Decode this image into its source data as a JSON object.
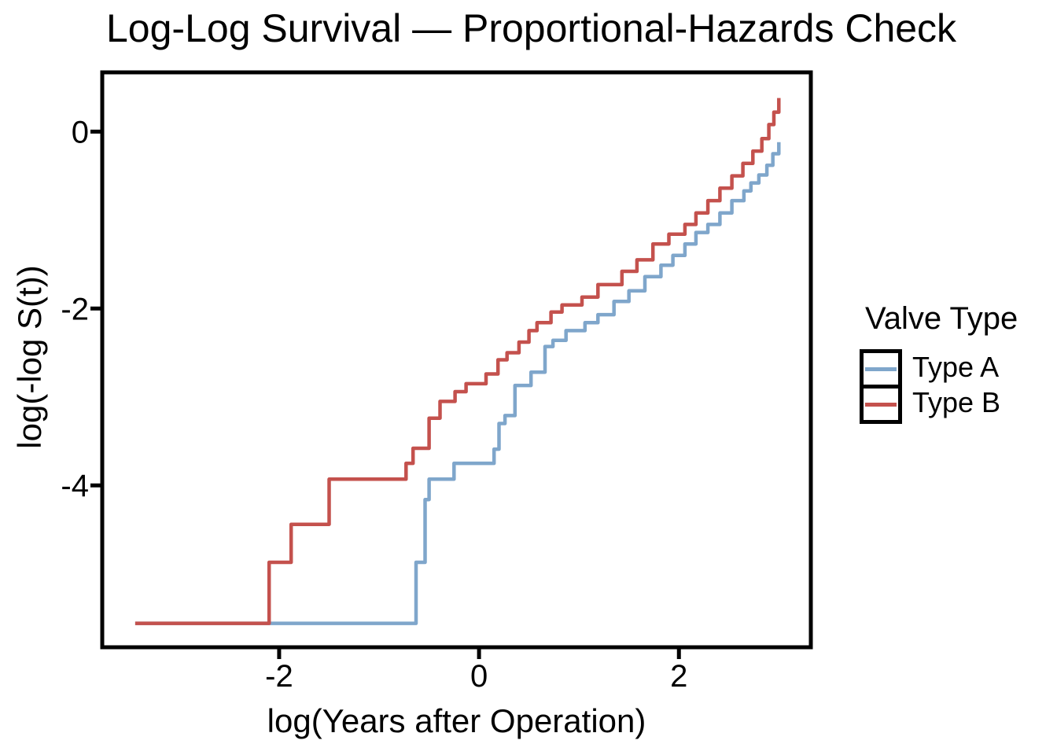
{
  "chart_data": {
    "type": "line",
    "step": true,
    "title": "Log-Log Survival — Proportional-Hazards Check",
    "xlabel": "log(Years after Operation)",
    "ylabel": "log(-log S(t))",
    "xlim": [
      -3.77,
      3.32
    ],
    "ylim": [
      -5.83,
      0.67
    ],
    "x_ticks": [
      {
        "value": -2,
        "label": "-2"
      },
      {
        "value": 0,
        "label": "0"
      },
      {
        "value": 2,
        "label": "2"
      }
    ],
    "y_ticks": [
      {
        "value": 0,
        "label": "0"
      },
      {
        "value": -2,
        "label": "-2"
      },
      {
        "value": -4,
        "label": "-4"
      }
    ],
    "grid": false,
    "panel_border_color": "#000000",
    "legend_title": "Valve Type",
    "legend_position": "right",
    "series": [
      {
        "name": "Type A",
        "color": "#7FA6CB",
        "points": [
          [
            -3.44,
            -5.56
          ],
          [
            -0.63,
            -4.87
          ],
          [
            -0.54,
            -4.16
          ],
          [
            -0.5,
            -3.93
          ],
          [
            -0.25,
            -3.75
          ],
          [
            0.15,
            -3.59
          ],
          [
            0.2,
            -3.3
          ],
          [
            0.26,
            -3.21
          ],
          [
            0.36,
            -2.87
          ],
          [
            0.52,
            -2.72
          ],
          [
            0.66,
            -2.43
          ],
          [
            0.74,
            -2.36
          ],
          [
            0.87,
            -2.25
          ],
          [
            1.06,
            -2.16
          ],
          [
            1.19,
            -2.07
          ],
          [
            1.35,
            -1.92
          ],
          [
            1.5,
            -1.8
          ],
          [
            1.66,
            -1.64
          ],
          [
            1.82,
            -1.51
          ],
          [
            1.94,
            -1.4
          ],
          [
            2.06,
            -1.27
          ],
          [
            2.17,
            -1.14
          ],
          [
            2.29,
            -1.05
          ],
          [
            2.41,
            -0.92
          ],
          [
            2.53,
            -0.78
          ],
          [
            2.65,
            -0.67
          ],
          [
            2.72,
            -0.58
          ],
          [
            2.8,
            -0.49
          ],
          [
            2.88,
            -0.38
          ],
          [
            2.94,
            -0.25
          ],
          [
            3.0,
            -0.12
          ]
        ]
      },
      {
        "name": "Type B",
        "color": "#C4514D",
        "points": [
          [
            -3.44,
            -5.56
          ],
          [
            -2.1,
            -4.87
          ],
          [
            -1.88,
            -4.44
          ],
          [
            -1.5,
            -3.93
          ],
          [
            -0.73,
            -3.75
          ],
          [
            -0.66,
            -3.58
          ],
          [
            -0.5,
            -3.24
          ],
          [
            -0.39,
            -3.05
          ],
          [
            -0.24,
            -2.94
          ],
          [
            -0.13,
            -2.85
          ],
          [
            0.07,
            -2.74
          ],
          [
            0.19,
            -2.58
          ],
          [
            0.28,
            -2.5
          ],
          [
            0.4,
            -2.38
          ],
          [
            0.5,
            -2.25
          ],
          [
            0.58,
            -2.16
          ],
          [
            0.72,
            -2.04
          ],
          [
            0.83,
            -1.96
          ],
          [
            1.03,
            -1.87
          ],
          [
            1.19,
            -1.73
          ],
          [
            1.43,
            -1.58
          ],
          [
            1.58,
            -1.45
          ],
          [
            1.74,
            -1.27
          ],
          [
            1.9,
            -1.16
          ],
          [
            2.06,
            -1.05
          ],
          [
            2.17,
            -0.92
          ],
          [
            2.29,
            -0.78
          ],
          [
            2.41,
            -0.64
          ],
          [
            2.53,
            -0.5
          ],
          [
            2.64,
            -0.36
          ],
          [
            2.74,
            -0.22
          ],
          [
            2.83,
            -0.08
          ],
          [
            2.9,
            0.08
          ],
          [
            2.95,
            0.22
          ],
          [
            3.0,
            0.38
          ]
        ]
      }
    ]
  }
}
